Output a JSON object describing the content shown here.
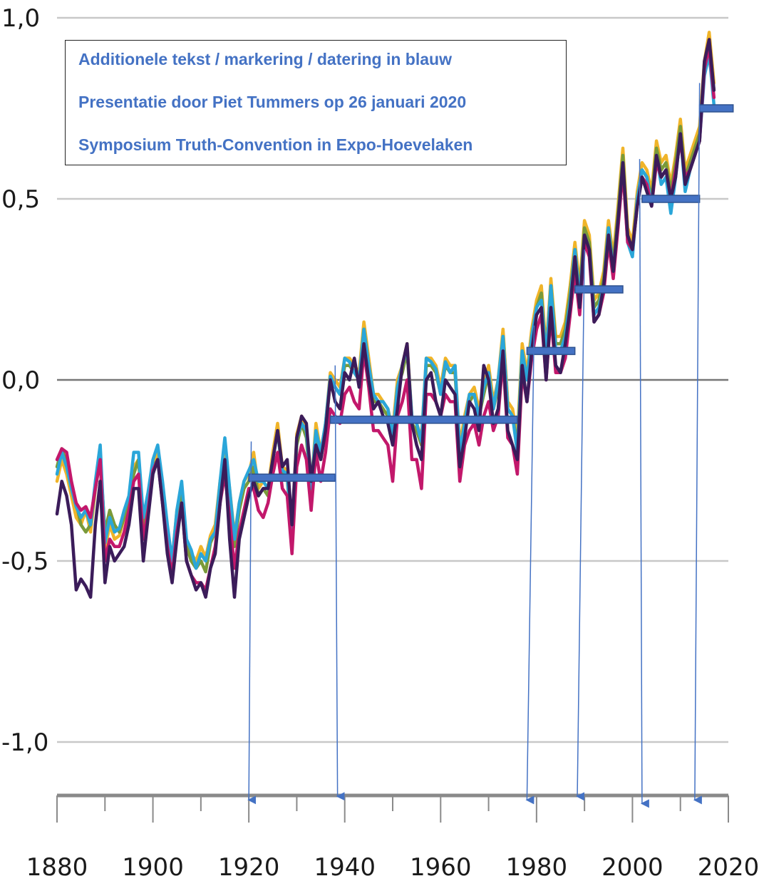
{
  "annotation": {
    "lines": [
      "Additionele tekst / markering / datering in blauw",
      "Presentatie door Piet Tummers op 26 januari 2020",
      "Symposium Truth-Convention in Expo-Hoevelaken"
    ]
  },
  "chart_data": {
    "type": "line",
    "title": "",
    "xlabel": "",
    "ylabel": "",
    "xlim": [
      1880,
      2020
    ],
    "ylim": [
      -1.15,
      1.0
    ],
    "grid": true,
    "yticks": [
      1.0,
      0.5,
      0.0,
      -0.5,
      -1.0
    ],
    "ytick_labels": [
      "1,0",
      "0,5",
      "0,0",
      "-0,5",
      "-1,0"
    ],
    "xticks": [
      1880,
      1900,
      1920,
      1940,
      1960,
      1980,
      2000,
      2020
    ],
    "xtick_labels": [
      "1880",
      "1900",
      "1920",
      "1940",
      "1960",
      "1980",
      "2000",
      "2020"
    ],
    "colors": [
      "#f0b429",
      "#7a9a3a",
      "#2aa6d9",
      "#c2186b",
      "#3b1c5a"
    ],
    "x": [
      1880,
      1881,
      1882,
      1883,
      1884,
      1885,
      1886,
      1887,
      1888,
      1889,
      1890,
      1891,
      1892,
      1893,
      1894,
      1895,
      1896,
      1897,
      1898,
      1899,
      1900,
      1901,
      1902,
      1903,
      1904,
      1905,
      1906,
      1907,
      1908,
      1909,
      1910,
      1911,
      1912,
      1913,
      1914,
      1915,
      1916,
      1917,
      1918,
      1919,
      1920,
      1921,
      1922,
      1923,
      1924,
      1925,
      1926,
      1927,
      1928,
      1929,
      1930,
      1931,
      1932,
      1933,
      1934,
      1935,
      1936,
      1937,
      1938,
      1939,
      1940,
      1941,
      1942,
      1943,
      1944,
      1945,
      1946,
      1947,
      1948,
      1949,
      1950,
      1951,
      1952,
      1953,
      1954,
      1955,
      1956,
      1957,
      1958,
      1959,
      1960,
      1961,
      1962,
      1963,
      1964,
      1965,
      1966,
      1967,
      1968,
      1969,
      1970,
      1971,
      1972,
      1973,
      1974,
      1975,
      1976,
      1977,
      1978,
      1979,
      1980,
      1981,
      1982,
      1983,
      1984,
      1985,
      1986,
      1987,
      1988,
      1989,
      1990,
      1991,
      1992,
      1993,
      1994,
      1995,
      1996,
      1997,
      1998,
      1999,
      2000,
      2001,
      2002,
      2003,
      2004,
      2005,
      2006,
      2007,
      2008,
      2009,
      2010,
      2011,
      2012,
      2013,
      2014,
      2015,
      2016,
      2017
    ],
    "series": [
      {
        "values": [
          -0.28,
          -0.22,
          -0.26,
          -0.32,
          -0.38,
          -0.4,
          -0.36,
          -0.42,
          -0.3,
          -0.22,
          -0.47,
          -0.4,
          -0.44,
          -0.43,
          -0.38,
          -0.34,
          -0.24,
          -0.22,
          -0.4,
          -0.33,
          -0.24,
          -0.2,
          -0.3,
          -0.42,
          -0.5,
          -0.36,
          -0.3,
          -0.45,
          -0.48,
          -0.5,
          -0.46,
          -0.49,
          -0.43,
          -0.4,
          -0.28,
          -0.2,
          -0.3,
          -0.43,
          -0.34,
          -0.28,
          -0.26,
          -0.2,
          -0.3,
          -0.28,
          -0.3,
          -0.2,
          -0.12,
          -0.24,
          -0.25,
          -0.42,
          -0.15,
          -0.1,
          -0.14,
          -0.3,
          -0.12,
          -0.2,
          -0.12,
          0.02,
          0.0,
          -0.02,
          0.06,
          0.06,
          0.04,
          0.02,
          0.16,
          0.06,
          -0.04,
          -0.04,
          -0.06,
          -0.08,
          -0.14,
          0.0,
          0.04,
          0.1,
          -0.1,
          -0.12,
          -0.16,
          0.06,
          0.06,
          0.04,
          -0.02,
          0.06,
          0.04,
          0.04,
          -0.18,
          -0.1,
          -0.04,
          -0.02,
          -0.08,
          -0.02,
          0.04,
          -0.06,
          0.0,
          0.14,
          -0.06,
          -0.08,
          -0.16,
          0.1,
          0.02,
          0.14,
          0.22,
          0.26,
          0.08,
          0.28,
          0.12,
          0.12,
          0.16,
          0.26,
          0.38,
          0.26,
          0.44,
          0.4,
          0.22,
          0.24,
          0.3,
          0.44,
          0.34,
          0.48,
          0.64,
          0.42,
          0.38,
          0.52,
          0.6,
          0.58,
          0.52,
          0.66,
          0.6,
          0.62,
          0.54,
          0.62,
          0.72,
          0.58,
          0.62,
          0.66,
          0.7,
          0.88,
          0.96,
          0.82
        ]
      },
      {
        "values": [
          -0.24,
          -0.19,
          -0.23,
          -0.3,
          -0.34,
          -0.4,
          -0.42,
          -0.4,
          -0.3,
          -0.22,
          -0.42,
          -0.36,
          -0.4,
          -0.42,
          -0.38,
          -0.34,
          -0.26,
          -0.22,
          -0.4,
          -0.34,
          -0.24,
          -0.22,
          -0.32,
          -0.44,
          -0.52,
          -0.4,
          -0.32,
          -0.46,
          -0.5,
          -0.52,
          -0.5,
          -0.53,
          -0.45,
          -0.42,
          -0.3,
          -0.22,
          -0.34,
          -0.46,
          -0.36,
          -0.3,
          -0.28,
          -0.24,
          -0.32,
          -0.3,
          -0.32,
          -0.22,
          -0.14,
          -0.26,
          -0.27,
          -0.45,
          -0.18,
          -0.12,
          -0.16,
          -0.32,
          -0.15,
          -0.22,
          -0.14,
          0.0,
          -0.02,
          -0.04,
          0.04,
          0.04,
          0.02,
          0.0,
          0.14,
          0.04,
          -0.06,
          -0.06,
          -0.08,
          -0.1,
          -0.16,
          -0.02,
          0.02,
          0.08,
          -0.12,
          -0.14,
          -0.18,
          0.04,
          0.04,
          0.02,
          -0.04,
          0.04,
          0.02,
          0.02,
          -0.2,
          -0.12,
          -0.06,
          -0.04,
          -0.1,
          -0.04,
          0.02,
          -0.08,
          -0.02,
          0.12,
          -0.08,
          -0.1,
          -0.18,
          0.08,
          0.0,
          0.12,
          0.2,
          0.24,
          0.06,
          0.26,
          0.1,
          0.1,
          0.14,
          0.24,
          0.36,
          0.24,
          0.42,
          0.38,
          0.2,
          0.22,
          0.28,
          0.42,
          0.32,
          0.46,
          0.62,
          0.4,
          0.36,
          0.5,
          0.58,
          0.56,
          0.5,
          0.64,
          0.58,
          0.6,
          0.52,
          0.6,
          0.7,
          0.56,
          0.6,
          0.64,
          0.68,
          0.86,
          0.94,
          0.8
        ]
      },
      {
        "values": [
          -0.26,
          -0.2,
          -0.24,
          -0.3,
          -0.35,
          -0.38,
          -0.36,
          -0.4,
          -0.28,
          -0.18,
          -0.45,
          -0.38,
          -0.42,
          -0.41,
          -0.36,
          -0.32,
          -0.2,
          -0.2,
          -0.38,
          -0.31,
          -0.22,
          -0.18,
          -0.28,
          -0.4,
          -0.5,
          -0.36,
          -0.28,
          -0.44,
          -0.47,
          -0.52,
          -0.48,
          -0.5,
          -0.44,
          -0.42,
          -0.28,
          -0.16,
          -0.3,
          -0.44,
          -0.34,
          -0.28,
          -0.25,
          -0.22,
          -0.28,
          -0.28,
          -0.3,
          -0.22,
          -0.14,
          -0.25,
          -0.26,
          -0.44,
          -0.16,
          -0.12,
          -0.14,
          -0.3,
          -0.14,
          -0.2,
          -0.12,
          0.01,
          -0.02,
          -0.04,
          0.06,
          0.05,
          0.02,
          0.0,
          0.14,
          0.04,
          -0.04,
          -0.06,
          -0.06,
          -0.08,
          -0.16,
          -0.02,
          0.04,
          0.09,
          -0.1,
          -0.12,
          -0.17,
          0.06,
          0.05,
          0.03,
          -0.04,
          0.05,
          0.02,
          0.04,
          -0.2,
          -0.12,
          -0.04,
          -0.04,
          -0.1,
          -0.02,
          0.02,
          -0.08,
          0.0,
          0.12,
          -0.08,
          -0.1,
          -0.2,
          0.08,
          0.0,
          0.12,
          0.2,
          0.22,
          0.06,
          0.26,
          0.08,
          0.08,
          0.12,
          0.22,
          0.36,
          0.22,
          0.4,
          0.36,
          0.18,
          0.2,
          0.26,
          0.42,
          0.3,
          0.44,
          0.6,
          0.38,
          0.34,
          0.5,
          0.58,
          0.56,
          0.48,
          0.62,
          0.54,
          0.56,
          0.46,
          0.56,
          0.68,
          0.52,
          0.58,
          0.62,
          0.66,
          0.84,
          0.9,
          0.76
        ]
      },
      {
        "values": [
          -0.22,
          -0.19,
          -0.2,
          -0.28,
          -0.34,
          -0.36,
          -0.35,
          -0.38,
          -0.3,
          -0.22,
          -0.5,
          -0.44,
          -0.46,
          -0.46,
          -0.42,
          -0.36,
          -0.28,
          -0.26,
          -0.44,
          -0.36,
          -0.25,
          -0.22,
          -0.34,
          -0.46,
          -0.54,
          -0.42,
          -0.34,
          -0.5,
          -0.54,
          -0.56,
          -0.56,
          -0.58,
          -0.52,
          -0.46,
          -0.34,
          -0.26,
          -0.38,
          -0.52,
          -0.42,
          -0.36,
          -0.3,
          -0.3,
          -0.36,
          -0.38,
          -0.34,
          -0.26,
          -0.2,
          -0.3,
          -0.32,
          -0.48,
          -0.24,
          -0.18,
          -0.22,
          -0.36,
          -0.2,
          -0.28,
          -0.2,
          -0.08,
          -0.1,
          -0.12,
          -0.04,
          -0.02,
          -0.06,
          -0.08,
          0.08,
          -0.02,
          -0.14,
          -0.14,
          -0.16,
          -0.18,
          -0.28,
          -0.1,
          -0.06,
          0.0,
          -0.22,
          -0.22,
          -0.3,
          -0.04,
          -0.04,
          -0.06,
          -0.1,
          -0.04,
          -0.06,
          -0.06,
          -0.28,
          -0.18,
          -0.14,
          -0.12,
          -0.18,
          -0.1,
          -0.06,
          -0.14,
          -0.1,
          0.06,
          -0.16,
          -0.18,
          -0.26,
          0.02,
          -0.06,
          0.06,
          0.14,
          0.18,
          0.0,
          0.18,
          0.02,
          0.02,
          0.06,
          0.18,
          0.3,
          0.18,
          0.38,
          0.34,
          0.16,
          0.18,
          0.24,
          0.38,
          0.28,
          0.42,
          0.58,
          0.38,
          0.36,
          0.48,
          0.56,
          0.54,
          0.48,
          0.6,
          0.56,
          0.58,
          0.5,
          0.58,
          0.66,
          0.56,
          0.58,
          0.62,
          0.66,
          0.86,
          0.92,
          0.78
        ]
      },
      {
        "values": [
          -0.37,
          -0.28,
          -0.32,
          -0.4,
          -0.58,
          -0.55,
          -0.57,
          -0.6,
          -0.4,
          -0.28,
          -0.56,
          -0.46,
          -0.5,
          -0.48,
          -0.46,
          -0.4,
          -0.3,
          -0.3,
          -0.5,
          -0.38,
          -0.26,
          -0.22,
          -0.34,
          -0.48,
          -0.56,
          -0.44,
          -0.34,
          -0.5,
          -0.54,
          -0.58,
          -0.56,
          -0.6,
          -0.52,
          -0.48,
          -0.34,
          -0.22,
          -0.44,
          -0.6,
          -0.44,
          -0.38,
          -0.32,
          -0.28,
          -0.32,
          -0.3,
          -0.3,
          -0.22,
          -0.14,
          -0.24,
          -0.22,
          -0.4,
          -0.16,
          -0.1,
          -0.12,
          -0.28,
          -0.18,
          -0.22,
          -0.14,
          0.0,
          -0.06,
          -0.08,
          0.02,
          0.0,
          0.06,
          -0.02,
          0.1,
          0.0,
          -0.08,
          -0.06,
          -0.1,
          -0.12,
          -0.18,
          -0.08,
          0.04,
          0.1,
          -0.12,
          -0.18,
          -0.22,
          0.0,
          0.02,
          -0.06,
          -0.1,
          0.0,
          -0.02,
          -0.04,
          -0.24,
          -0.16,
          -0.06,
          -0.08,
          -0.14,
          0.04,
          0.0,
          -0.12,
          -0.08,
          0.08,
          -0.14,
          -0.18,
          -0.22,
          0.04,
          -0.06,
          0.08,
          0.18,
          0.2,
          0.0,
          0.2,
          0.04,
          0.02,
          0.1,
          0.2,
          0.34,
          0.2,
          0.4,
          0.36,
          0.16,
          0.18,
          0.26,
          0.4,
          0.3,
          0.44,
          0.6,
          0.4,
          0.36,
          0.48,
          0.56,
          0.52,
          0.48,
          0.62,
          0.56,
          0.58,
          0.5,
          0.56,
          0.68,
          0.54,
          0.58,
          0.62,
          0.66,
          0.88,
          0.94,
          0.8
        ]
      }
    ],
    "step_markers": [
      {
        "x_start": 1920,
        "x_end": 1938,
        "y": -0.27
      },
      {
        "x_start": 1937,
        "x_end": 1976,
        "y": -0.11
      },
      {
        "x_start": 1978,
        "x_end": 1988,
        "y": 0.08
      },
      {
        "x_start": 1988,
        "x_end": 1998,
        "y": 0.25
      },
      {
        "x_start": 2002,
        "x_end": 2014,
        "y": 0.5
      },
      {
        "x_start": 2014,
        "x_end": 2021,
        "y": 0.75
      }
    ],
    "arrows": [
      {
        "x_top": 1920.5,
        "y_top": -0.17,
        "x_bottom": 1920,
        "y_bottom": -1.16
      },
      {
        "x_top": 1938,
        "y_top": 0.04,
        "x_bottom": 1938.5,
        "y_bottom": -1.15
      },
      {
        "x_top": 1979.5,
        "y_top": 0.15,
        "x_bottom": 1978,
        "y_bottom": -1.16
      },
      {
        "x_top": 1990,
        "y_top": 0.36,
        "x_bottom": 1988.5,
        "y_bottom": -1.15
      },
      {
        "x_top": 2001.5,
        "y_top": 0.61,
        "x_bottom": 2002,
        "y_bottom": -1.17
      },
      {
        "x_top": 2014,
        "y_top": 0.82,
        "x_bottom": 2013,
        "y_bottom": -1.16
      }
    ]
  }
}
